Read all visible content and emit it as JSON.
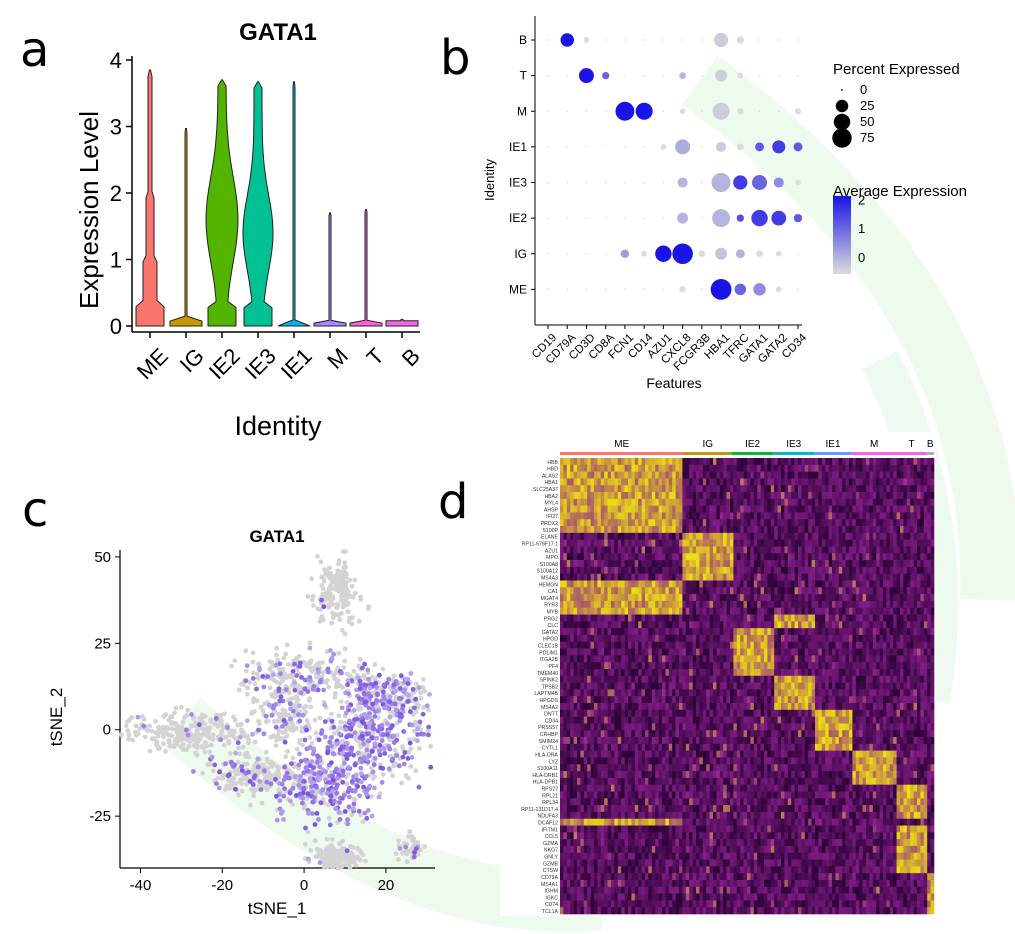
{
  "panels": {
    "a": "a",
    "b": "b",
    "c": "c",
    "d": "d"
  },
  "colors": {
    "violin": [
      "#f8766d",
      "#c49a00",
      "#53b400",
      "#00c094",
      "#00b6eb",
      "#a58aff",
      "#fb61d7",
      "#f564e3"
    ],
    "dot_low": "#dcdcdc",
    "dot_high": "#1a14e6",
    "tsne_low": "#d3d3d3",
    "tsne_high": "#7b4fe0",
    "heat_low": "#2a0235",
    "heat_mid": "#8a1f8e",
    "heat_high": "#f0e010",
    "heat_groups": [
      "#f8766d",
      "#b79f00",
      "#00ba38",
      "#00bfc4",
      "#619cff",
      "#f564e3",
      "#f564e3",
      "#b0b0b0"
    ]
  },
  "chart_data": [
    {
      "type": "violin",
      "title": "GATA1",
      "xlabel": "Identity",
      "ylabel": "Expression Level",
      "ylim": [
        0,
        4
      ],
      "yticks": [
        "0",
        "1",
        "2",
        "3",
        "4"
      ],
      "categories": [
        "ME",
        "IG",
        "IE2",
        "IE3",
        "IE1",
        "M",
        "T",
        "B"
      ],
      "max_values": [
        3.85,
        2.97,
        3.7,
        3.67,
        3.67,
        1.7,
        1.75,
        0.1
      ]
    },
    {
      "type": "dot",
      "xlabel": "Features",
      "ylabel": "Identity",
      "features": [
        "CD19",
        "CD79A",
        "CD3D",
        "CD8A",
        "FCN1",
        "CD14",
        "AZU1",
        "CXCL8",
        "FCGR3B",
        "HBA1",
        "TFRC",
        "GATA1",
        "GATA2",
        "CD34"
      ],
      "identities": [
        "B",
        "T",
        "M",
        "IE1",
        "IE3",
        "IE2",
        "IG",
        "ME"
      ],
      "size_legend": {
        "title": "Percent Expressed",
        "values": [
          "0",
          "25",
          "50",
          "75"
        ]
      },
      "color_legend": {
        "title": "Average Expression",
        "values": [
          "2",
          "1",
          "0"
        ]
      },
      "pct": [
        [
          1,
          30,
          2,
          1,
          1,
          1,
          1,
          1,
          1,
          35,
          5,
          1,
          1,
          1
        ],
        [
          1,
          1,
          40,
          5,
          1,
          1,
          1,
          4,
          1,
          22,
          2,
          1,
          1,
          1
        ],
        [
          1,
          1,
          1,
          1,
          70,
          55,
          1,
          2,
          1,
          55,
          3,
          1,
          1,
          3
        ],
        [
          1,
          1,
          1,
          1,
          1,
          1,
          2,
          40,
          1,
          14,
          4,
          10,
          28,
          10
        ],
        [
          1,
          1,
          1,
          1,
          1,
          1,
          1,
          14,
          1,
          72,
          35,
          40,
          14,
          2
        ],
        [
          1,
          1,
          1,
          1,
          1,
          1,
          1,
          18,
          1,
          62,
          5,
          50,
          38,
          8
        ],
        [
          1,
          1,
          1,
          1,
          8,
          2,
          50,
          85,
          4,
          22,
          10,
          4,
          2,
          1
        ],
        [
          1,
          1,
          1,
          1,
          1,
          1,
          1,
          3,
          1,
          88,
          20,
          25,
          2,
          1
        ]
      ],
      "avg": [
        [
          0,
          2.5,
          0,
          0,
          0,
          0,
          0,
          0,
          0,
          0.2,
          0,
          0,
          0,
          0
        ],
        [
          0,
          0,
          2.5,
          1.5,
          0,
          0,
          0,
          0.5,
          0,
          0.2,
          0,
          0,
          0,
          0
        ],
        [
          0,
          0,
          0,
          0,
          2.5,
          2.5,
          0,
          0,
          0,
          0.2,
          0,
          0,
          0,
          0
        ],
        [
          0,
          0,
          0,
          0,
          0,
          0,
          0,
          0.6,
          0,
          0.2,
          0,
          1.6,
          2,
          1.6
        ],
        [
          0,
          0,
          0,
          0,
          0,
          0,
          0,
          0.5,
          0,
          0.5,
          2,
          1.5,
          1,
          0
        ],
        [
          0,
          0,
          0,
          0,
          0,
          0,
          0,
          0.5,
          0,
          0.5,
          1.8,
          2,
          2,
          1.6
        ],
        [
          0,
          0,
          0,
          0,
          0.8,
          0,
          2.5,
          2.5,
          0,
          0.3,
          0.5,
          0,
          0,
          0
        ],
        [
          0,
          0,
          0,
          0,
          0,
          0,
          0,
          0,
          0,
          2.5,
          1.5,
          1,
          0,
          0
        ]
      ]
    },
    {
      "type": "scatter",
      "title": "GATA1",
      "xlabel": "tSNE_1",
      "ylabel": "tSNE_2",
      "xlim": [
        -45,
        32
      ],
      "ylim": [
        -40,
        52
      ],
      "xticks": [
        -40,
        -20,
        0,
        20
      ],
      "yticks": [
        50,
        25,
        0,
        -25
      ],
      "clusters": [
        {
          "cx": 8,
          "cy": 40,
          "rx": 5,
          "ry": 8,
          "n": 160,
          "expressed": 0.02
        },
        {
          "cx": 0,
          "cy": 16,
          "rx": 14,
          "ry": 6,
          "n": 220,
          "expressed": 0.22
        },
        {
          "cx": 20,
          "cy": 10,
          "rx": 10,
          "ry": 7,
          "n": 230,
          "expressed": 0.45
        },
        {
          "cx": 16,
          "cy": -2,
          "rx": 12,
          "ry": 10,
          "n": 320,
          "expressed": 0.55
        },
        {
          "cx": 5,
          "cy": -15,
          "rx": 12,
          "ry": 10,
          "n": 340,
          "expressed": 0.6
        },
        {
          "cx": -28,
          "cy": -1,
          "rx": 14,
          "ry": 5,
          "n": 260,
          "expressed": 0.05
        },
        {
          "cx": -13,
          "cy": -13,
          "rx": 9,
          "ry": 5,
          "n": 200,
          "expressed": 0.12
        },
        {
          "cx": 8,
          "cy": -37,
          "rx": 5,
          "ry": 4,
          "n": 180,
          "expressed": 0.02
        },
        {
          "cx": 26,
          "cy": -34,
          "rx": 3,
          "ry": 3,
          "n": 50,
          "expressed": 0.05
        },
        {
          "cx": -5,
          "cy": 5,
          "rx": 8,
          "ry": 8,
          "n": 150,
          "expressed": 0.2
        }
      ]
    },
    {
      "type": "heatmap",
      "groups": [
        "ME",
        "IG",
        "IE2",
        "IE3",
        "IE1",
        "M",
        "T",
        "B"
      ],
      "group_widths": [
        0.33,
        0.13,
        0.11,
        0.11,
        0.1,
        0.12,
        0.08,
        0.02
      ],
      "genes": [
        "HBB",
        "HBD",
        "ALAS2",
        "HBA1",
        "SLC25A37",
        "HBA2",
        "MYL4",
        "AHSP",
        "IFI27",
        "PRDX2",
        "S100P",
        "ELANE",
        "RP11-678F17.1",
        "AZU1",
        "MPO",
        "S100A8",
        "S100A12",
        "MS4A3",
        "HEMGN",
        "CA1",
        "MGAT4",
        "RYR3",
        "MYB",
        "PRG2",
        "CLC",
        "GATA2",
        "HPGD",
        "CLEC1B",
        "PDLIM1",
        "ITGA2B",
        "PF4",
        "TMEM40",
        "SPINK2",
        "TPSB2",
        "LAPTM4B",
        "HPGDS",
        "MS4A2",
        "DNTT",
        "CD34",
        "PRSS57",
        "CRHBP",
        "SMIM24",
        "CYTL1",
        "HLA-DRA",
        "LYZ",
        "S100A11",
        "HLA-DRB1",
        "HLA-DPB1",
        "RPS27",
        "RPL21",
        "RPL34",
        "RP11-131D17.4",
        "NDUFA3",
        "DCAF12",
        "IFITM1",
        "CCL5",
        "GZMA",
        "NKG7",
        "GNLY",
        "GZMB",
        "CTSW",
        "CD79A",
        "MS4A1",
        "IGHM",
        "IGKC",
        "CD74",
        "TCL1A"
      ],
      "gene_owner": [
        0,
        0,
        0,
        0,
        0,
        0,
        0,
        0,
        0,
        0,
        0,
        1,
        1,
        1,
        1,
        1,
        1,
        1,
        0,
        0,
        0,
        0,
        0,
        3,
        3,
        2,
        2,
        2,
        2,
        2,
        2,
        2,
        3,
        3,
        3,
        3,
        3,
        4,
        4,
        4,
        4,
        4,
        4,
        5,
        5,
        5,
        5,
        5,
        6,
        6,
        6,
        6,
        6,
        0,
        6,
        6,
        6,
        6,
        6,
        6,
        6,
        7,
        7,
        7,
        7,
        7,
        7
      ]
    }
  ]
}
